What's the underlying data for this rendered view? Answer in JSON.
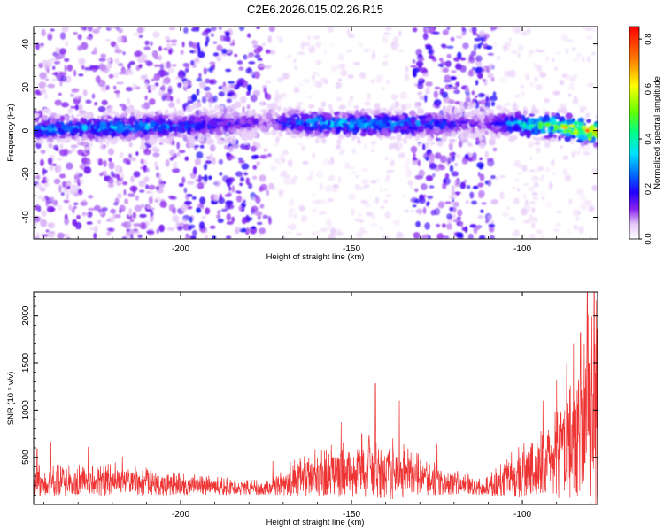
{
  "title": "C2E6.2026.015.02.26.R15",
  "chart_data": [
    {
      "type": "heatmap",
      "xlabel": "Height of straight line (km)",
      "ylabel": "Frequency (Hz)",
      "xlim": [
        -243,
        -78
      ],
      "ylim": [
        -50,
        48
      ],
      "xticks": [
        -200,
        -150,
        -100
      ],
      "yticks": [
        40,
        20,
        0,
        -20,
        -40
      ],
      "colorbar": {
        "label": "Normalized spectral amplitude",
        "range": [
          0,
          0.85
        ],
        "ticks": [
          0,
          0.2,
          0.4,
          0.6,
          0.8
        ],
        "tick_labels": [
          "0.0",
          "0.2",
          "0.4",
          "0.6",
          "0.8"
        ]
      },
      "band": {
        "center_hz": [
          {
            "x": -243,
            "y": 1
          },
          {
            "x": -200,
            "y": 2
          },
          {
            "x": -172,
            "y": 4
          },
          {
            "x": -150,
            "y": 3
          },
          {
            "x": -125,
            "y": 3
          },
          {
            "x": -105,
            "y": 3
          },
          {
            "x": -90,
            "y": 2
          },
          {
            "x": -78,
            "y": -1
          }
        ],
        "strength": [
          {
            "x": -243,
            "v": 0.3
          },
          {
            "x": -210,
            "v": 0.3
          },
          {
            "x": -175,
            "v": 0.12
          },
          {
            "x": -165,
            "v": 0.32
          },
          {
            "x": -140,
            "v": 0.33
          },
          {
            "x": -125,
            "v": 0.25
          },
          {
            "x": -112,
            "v": 0.12
          },
          {
            "x": -100,
            "v": 0.4
          },
          {
            "x": -85,
            "v": 0.62
          },
          {
            "x": -78,
            "v": 0.85
          }
        ]
      },
      "broadband_regions": [
        {
          "x_range": [
            -243,
            -173
          ],
          "level": 0.1
        },
        {
          "x_range": [
            -200,
            -177
          ],
          "level": 0.14
        },
        {
          "x_range": [
            -132,
            -108
          ],
          "level": 0.14
        }
      ]
    },
    {
      "type": "line",
      "xlabel": "Height of straight line (km)",
      "ylabel": "SNR (10 * v/v)",
      "xlim": [
        -243,
        -78
      ],
      "ylim": [
        0,
        2250
      ],
      "xticks": [
        -200,
        -150,
        -100
      ],
      "yticks": [
        500,
        1000,
        1500,
        2000
      ],
      "color": "#ee3333",
      "envelope": [
        {
          "x": -243,
          "mean": 220,
          "amp": 130
        },
        {
          "x": -220,
          "mean": 230,
          "amp": 140
        },
        {
          "x": -200,
          "mean": 190,
          "amp": 90
        },
        {
          "x": -175,
          "mean": 160,
          "amp": 60
        },
        {
          "x": -165,
          "mean": 260,
          "amp": 170
        },
        {
          "x": -150,
          "mean": 330,
          "amp": 260
        },
        {
          "x": -140,
          "mean": 320,
          "amp": 280
        },
        {
          "x": -128,
          "mean": 250,
          "amp": 150
        },
        {
          "x": -112,
          "mean": 170,
          "amp": 70
        },
        {
          "x": -102,
          "mean": 270,
          "amp": 200
        },
        {
          "x": -92,
          "mean": 420,
          "amp": 350
        },
        {
          "x": -86,
          "mean": 600,
          "amp": 550
        },
        {
          "x": -80,
          "mean": 850,
          "amp": 850
        },
        {
          "x": -78,
          "mean": 1000,
          "amp": 1100
        }
      ],
      "peaks": [
        {
          "x": -242,
          "y": 590
        },
        {
          "x": -238,
          "y": 660
        },
        {
          "x": -227,
          "y": 610
        },
        {
          "x": -217,
          "y": 510
        },
        {
          "x": -173,
          "y": 460
        },
        {
          "x": -153,
          "y": 870
        },
        {
          "x": -147,
          "y": 750
        },
        {
          "x": -143,
          "y": 1280
        },
        {
          "x": -136,
          "y": 1100
        },
        {
          "x": -132,
          "y": 800
        },
        {
          "x": -125,
          "y": 640
        },
        {
          "x": -94,
          "y": 1100
        },
        {
          "x": -90,
          "y": 1320
        },
        {
          "x": -87,
          "y": 1500
        },
        {
          "x": -85,
          "y": 1700
        },
        {
          "x": -83,
          "y": 1820
        },
        {
          "x": -81,
          "y": 2250
        },
        {
          "x": -79,
          "y": 2250
        }
      ]
    }
  ]
}
